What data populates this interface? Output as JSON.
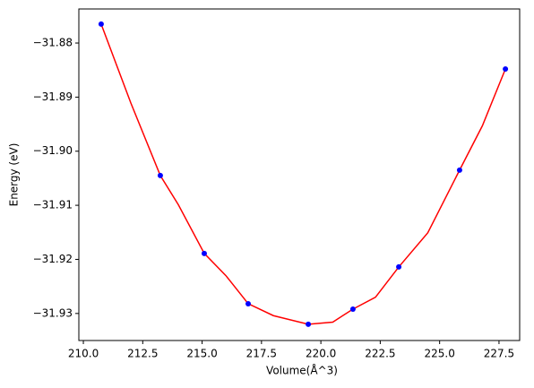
{
  "chart_data": {
    "type": "scatter",
    "x_label": "Volume(Å^3)",
    "y_label": "Energy (eV)",
    "xlim": [
      209.81,
      228.37
    ],
    "ylim": [
      -31.935,
      -31.8737
    ],
    "xticks": [
      {
        "value": 210.0,
        "label": "210.0"
      },
      {
        "value": 212.5,
        "label": "212.5"
      },
      {
        "value": 215.0,
        "label": "215.0"
      },
      {
        "value": 217.5,
        "label": "217.5"
      },
      {
        "value": 220.0,
        "label": "220.0"
      },
      {
        "value": 222.5,
        "label": "222.5"
      },
      {
        "value": 225.0,
        "label": "225.0"
      },
      {
        "value": 227.5,
        "label": "227.5"
      }
    ],
    "yticks": [
      {
        "value": -31.93,
        "label": "−31.93"
      },
      {
        "value": -31.92,
        "label": "−31.92"
      },
      {
        "value": -31.91,
        "label": "−31.91"
      },
      {
        "value": -31.9,
        "label": "−31.90"
      },
      {
        "value": -31.89,
        "label": "−31.89"
      },
      {
        "value": -31.88,
        "label": "−31.88"
      }
    ],
    "series": [
      {
        "kind": "line",
        "color": "#ff0000",
        "x": [
          210.75,
          212,
          213.24,
          214,
          215.09,
          216,
          216.94,
          218,
          219.47,
          220.5,
          221.35,
          222.3,
          223.28,
          224.5,
          225.84,
          226.8,
          227.77
        ],
        "values": [
          -31.8765,
          -31.8911,
          -31.9045,
          -31.9099,
          -31.9189,
          -31.923,
          -31.9282,
          -31.9304,
          -31.932,
          -31.9316,
          -31.9292,
          -31.927,
          -31.9214,
          -31.9151,
          -31.9035,
          -31.8953,
          -31.8848
        ]
      },
      {
        "kind": "marker",
        "color": "#0000ff",
        "x": [
          210.75,
          213.24,
          215.09,
          216.94,
          219.47,
          221.35,
          223.28,
          225.84,
          227.77
        ],
        "values": [
          -31.8765,
          -31.9045,
          -31.9189,
          -31.9282,
          -31.932,
          -31.9292,
          -31.9214,
          -31.9035,
          -31.8848
        ]
      }
    ]
  }
}
